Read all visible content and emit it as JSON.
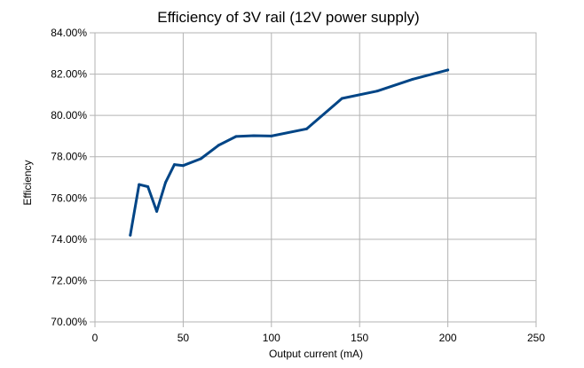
{
  "chart_data": {
    "type": "line",
    "title": "Efficiency of 3V rail (12V power supply)",
    "xlabel": "Output current (mA)",
    "ylabel": "Efficiency",
    "xlim": [
      0,
      250
    ],
    "ylim": [
      70,
      84
    ],
    "x_ticks": [
      0,
      50,
      100,
      150,
      200,
      250
    ],
    "y_ticks": [
      70,
      72,
      74,
      76,
      78,
      80,
      82,
      84
    ],
    "x_tick_labels": [
      "0",
      "50",
      "100",
      "150",
      "200",
      "250"
    ],
    "y_tick_labels": [
      "70.00%",
      "72.00%",
      "74.00%",
      "76.00%",
      "78.00%",
      "80.00%",
      "82.00%",
      "84.00%"
    ],
    "grid": true,
    "legend": false,
    "series": [
      {
        "color": "#004586",
        "x": [
          20,
          25,
          30,
          35,
          40,
          45,
          50,
          60,
          70,
          80,
          90,
          100,
          120,
          140,
          160,
          180,
          200
        ],
        "values": [
          74.2,
          76.65,
          76.55,
          75.35,
          76.75,
          77.62,
          77.57,
          77.9,
          78.55,
          78.98,
          79.02,
          79.0,
          79.35,
          80.82,
          81.18,
          81.75,
          82.2
        ]
      }
    ]
  }
}
